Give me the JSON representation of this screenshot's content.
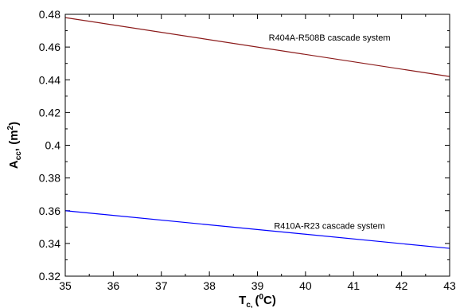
{
  "chart_data": {
    "type": "line",
    "title": "",
    "xlabel": {
      "main": "T",
      "sub": "c, ",
      "mid": "(",
      "sup": "0",
      "end": "C)"
    },
    "ylabel": {
      "main": "A",
      "sub": "cc",
      "mid": ", (m",
      "sup": "2",
      "end": ")"
    },
    "xlim": [
      35,
      43
    ],
    "ylim": [
      0.32,
      0.48
    ],
    "xticks": [
      "35",
      "36",
      "37",
      "38",
      "39",
      "40",
      "41",
      "42",
      "43"
    ],
    "yticks": [
      "0.32",
      "0.34",
      "0.36",
      "0.38",
      "0.4",
      "0.42",
      "0.44",
      "0.46",
      "0.48"
    ],
    "grid": false,
    "series": [
      {
        "name": "R404A-R508B cascade system",
        "color": "#8b1a1a",
        "x": [
          35,
          43
        ],
        "y": [
          0.478,
          0.442
        ]
      },
      {
        "name": "R410A-R23 cascade system",
        "color": "#0000ff",
        "x": [
          35,
          43
        ],
        "y": [
          0.36,
          0.337
        ]
      }
    ],
    "annotations": [
      {
        "text": "R404A-R508B cascade system",
        "x": 40.5,
        "y": 0.464
      },
      {
        "text": "R410A-R23 cascade system",
        "x": 40.5,
        "y": 0.349
      }
    ]
  }
}
